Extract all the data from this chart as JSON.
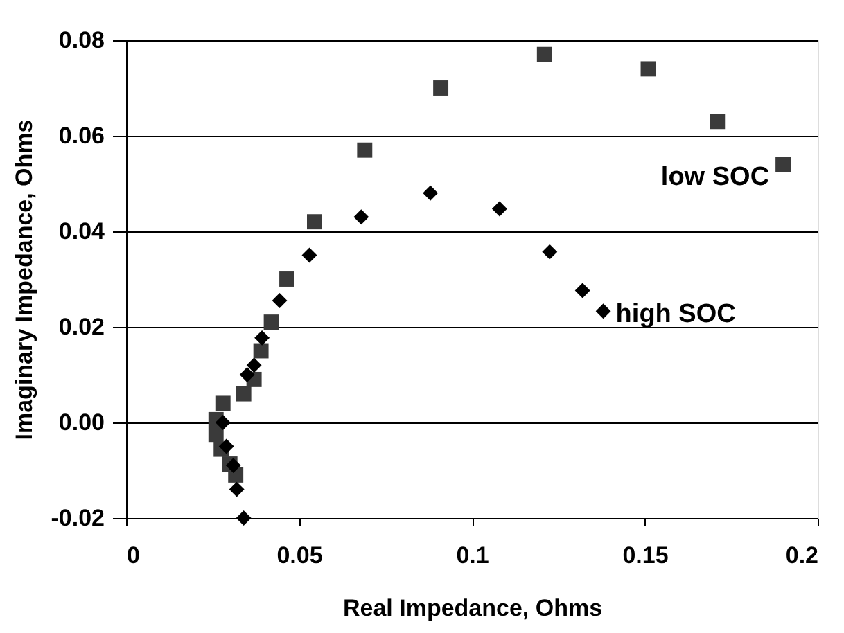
{
  "chart_data": {
    "type": "scatter",
    "xlabel": "Real Impedance, Ohms",
    "ylabel": "Imaginary Impedance, Ohms",
    "xlim": [
      0,
      0.2
    ],
    "ylim": [
      -0.02,
      0.08
    ],
    "xticks": [
      0,
      0.05,
      0.1,
      0.15,
      0.2
    ],
    "yticks": [
      {
        "value": -0.02,
        "label": "-0.02"
      },
      {
        "value": 0,
        "label": "0.00"
      },
      {
        "value": 0.02,
        "label": "0.02"
      },
      {
        "value": 0.04,
        "label": "0.04"
      },
      {
        "value": 0.06,
        "label": "0.06"
      },
      {
        "value": 0.08,
        "label": "0.08"
      }
    ],
    "grid": "y",
    "legend": false,
    "series": [
      {
        "name": "low SOC",
        "color": "#3a3a3a",
        "marker": "square",
        "x": [
          0.0317,
          0.03,
          0.0275,
          0.026,
          0.026,
          0.028,
          0.034,
          0.037,
          0.039,
          0.042,
          0.0465,
          0.0545,
          0.069,
          0.091,
          0.121,
          0.151,
          0.171,
          0.19
        ],
        "values": [
          -0.011,
          -0.0087,
          -0.0056,
          -0.0025,
          0.0006,
          0.004,
          0.006,
          0.009,
          0.015,
          0.021,
          0.03,
          0.042,
          0.057,
          0.07,
          0.077,
          0.074,
          0.063,
          0.054
        ]
      },
      {
        "name": "high SOC",
        "color": "#000000",
        "marker": "diamond",
        "x": [
          0.034,
          0.032,
          0.031,
          0.029,
          0.028,
          0.035,
          0.037,
          0.0393,
          0.0444,
          0.053,
          0.068,
          0.088,
          0.108,
          0.1225,
          0.132,
          0.138
        ],
        "values": [
          -0.02,
          -0.014,
          -0.009,
          -0.005,
          0.0,
          0.01,
          0.012,
          0.0177,
          0.0255,
          0.035,
          0.043,
          0.048,
          0.0447,
          0.0357,
          0.0276,
          0.0233
        ]
      }
    ]
  }
}
